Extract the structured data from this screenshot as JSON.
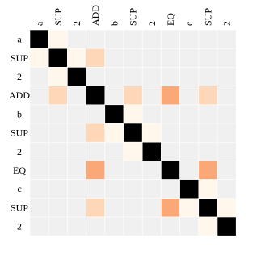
{
  "chart_data": {
    "type": "heatmap",
    "x_labels": [
      "a",
      "SUP",
      "2",
      "ADD",
      "b",
      "SUP",
      "2",
      "EQ",
      "c",
      "SUP",
      "2"
    ],
    "y_labels": [
      "a",
      "SUP",
      "2",
      "ADD",
      "b",
      "SUP",
      "2",
      "EQ",
      "c",
      "SUP",
      "2"
    ],
    "x_label_rotation": "vertical",
    "x_labels_position": "top",
    "grid": false,
    "colors": {
      "background_cell": "#f0f0f0",
      "grid_line": "#ffffff",
      "low": "#fff7ec",
      "mid": "#fdd7b7",
      "high": "#fba878",
      "diag": "#000000"
    },
    "values": [
      [
        1.0,
        0.1,
        0,
        0,
        0,
        0,
        0,
        0,
        0,
        0,
        0
      ],
      [
        0.1,
        1.0,
        0.1,
        0.3,
        0,
        0,
        0,
        0,
        0,
        0,
        0
      ],
      [
        0,
        0.1,
        1.0,
        0,
        0,
        0,
        0,
        0,
        0,
        0,
        0
      ],
      [
        0,
        0.3,
        0,
        1.0,
        0,
        0.3,
        0,
        0.6,
        0,
        0.3,
        0
      ],
      [
        0,
        0,
        0,
        0,
        1.0,
        0.1,
        0,
        0,
        0,
        0,
        0
      ],
      [
        0,
        0,
        0,
        0.3,
        0.1,
        1.0,
        0.1,
        0,
        0,
        0,
        0
      ],
      [
        0,
        0,
        0,
        0,
        0,
        0.1,
        1.0,
        0,
        0,
        0,
        0
      ],
      [
        0,
        0,
        0,
        0.6,
        0,
        0,
        0,
        1.0,
        0,
        0.6,
        0
      ],
      [
        0,
        0,
        0,
        0,
        0,
        0,
        0,
        0,
        1.0,
        0.1,
        0
      ],
      [
        0,
        0,
        0,
        0.3,
        0,
        0,
        0,
        0.6,
        0.1,
        1.0,
        0.1
      ],
      [
        0,
        0,
        0,
        0,
        0,
        0,
        0,
        0,
        0,
        0.1,
        1.0
      ]
    ]
  }
}
